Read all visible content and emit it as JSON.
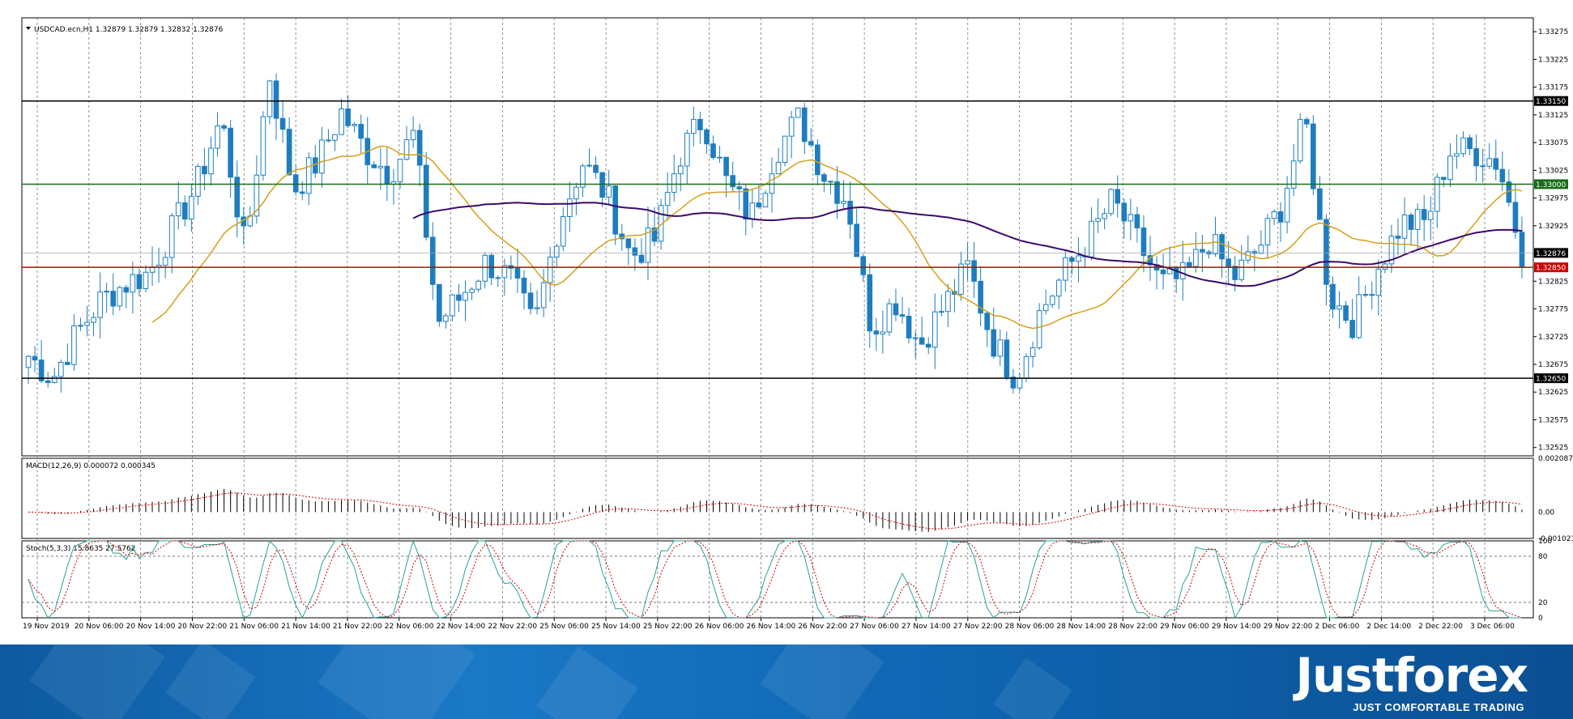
{
  "chart_data": [
    {
      "type": "candlestick",
      "symbol_header": "USDCAD.ecn,H1  1.32879 1.32879 1.32832 1.32876",
      "ylim": [
        1.3251,
        1.333
      ],
      "y_ticks": [
        "1.33275",
        "1.33225",
        "1.33175",
        "1.33125",
        "1.33075",
        "1.33025",
        "1.32975",
        "1.32925",
        "1.32875",
        "1.32825",
        "1.32775",
        "1.32725",
        "1.32675",
        "1.32625",
        "1.32575",
        "1.32525"
      ],
      "x_ticks": [
        "19 Nov 2019",
        "20 Nov 06:00",
        "20 Nov 14:00",
        "20 Nov 22:00",
        "21 Nov 06:00",
        "21 Nov 14:00",
        "21 Nov 22:00",
        "22 Nov 06:00",
        "22 Nov 14:00",
        "22 Nov 22:00",
        "25 Nov 06:00",
        "25 Nov 14:00",
        "25 Nov 22:00",
        "26 Nov 06:00",
        "26 Nov 14:00",
        "26 Nov 22:00",
        "27 Nov 06:00",
        "27 Nov 14:00",
        "27 Nov 22:00",
        "28 Nov 06:00",
        "28 Nov 14:00",
        "28 Nov 22:00",
        "29 Nov 06:00",
        "29 Nov 14:00",
        "29 Nov 22:00",
        "2 Dec 06:00",
        "2 Dec 14:00",
        "2 Dec 22:00",
        "3 Dec 06:00"
      ],
      "close_anchors": [
        1.3269,
        1.3265,
        1.3273,
        1.3279,
        1.3282,
        1.3284,
        1.3292,
        1.33,
        1.3312,
        1.3288,
        1.332,
        1.3299,
        1.3304,
        1.3313,
        1.3306,
        1.3302,
        1.3309,
        1.3275,
        1.328,
        1.3286,
        1.3283,
        1.3274,
        1.3293,
        1.3304,
        1.3298,
        1.3287,
        1.329,
        1.3305,
        1.3312,
        1.33,
        1.3294,
        1.3306,
        1.3312,
        1.3302,
        1.3297,
        1.3274,
        1.3279,
        1.3271,
        1.3278,
        1.3285,
        1.3272,
        1.3265,
        1.3277,
        1.3284,
        1.329,
        1.3297,
        1.329,
        1.3282,
        1.3283,
        1.329,
        1.3283,
        1.3288,
        1.3296,
        1.3312,
        1.328,
        1.3275,
        1.3285,
        1.3293,
        1.3293,
        1.3306,
        1.3306,
        1.3304,
        1.3288
      ],
      "horizontal_levels": [
        {
          "value": 1.3315,
          "label": "1.33150",
          "color": "#000000"
        },
        {
          "value": 1.33,
          "label": "1.33000",
          "color": "#1a6b1a"
        },
        {
          "value": 1.3285,
          "label": "1.32850",
          "color": "#cc0000"
        },
        {
          "value": 1.3265,
          "label": "1.32650",
          "color": "#000000"
        }
      ],
      "current_price": {
        "value": 1.32876,
        "label": "1.32876"
      },
      "moving_averages": [
        {
          "color": "#d4a017",
          "period_hint": "fast"
        },
        {
          "color": "#3a0a6b",
          "period_hint": "slow"
        }
      ],
      "candle_color": "#1f7dbf"
    },
    {
      "type": "histogram",
      "indicator_label": "MACD(12,26,9) 0.000072 0.000345",
      "ylim": [
        -0.001021,
        0.002087
      ],
      "y_ticks": [
        "0.002087",
        "0.00",
        "-0.001021"
      ],
      "signal_color": "#cc0000"
    },
    {
      "type": "line",
      "indicator_label": "Stoch(5,3,3) 15.8635 27.5762",
      "ylim": [
        0,
        100
      ],
      "y_ticks": [
        "100",
        "80",
        "20",
        "0"
      ],
      "levels": [
        80,
        20
      ],
      "main_color": "#2aa198",
      "signal_color": "#cc0000"
    }
  ],
  "brand": {
    "logo": "Justforex",
    "tagline": "JUST COMFORTABLE TRADING"
  }
}
